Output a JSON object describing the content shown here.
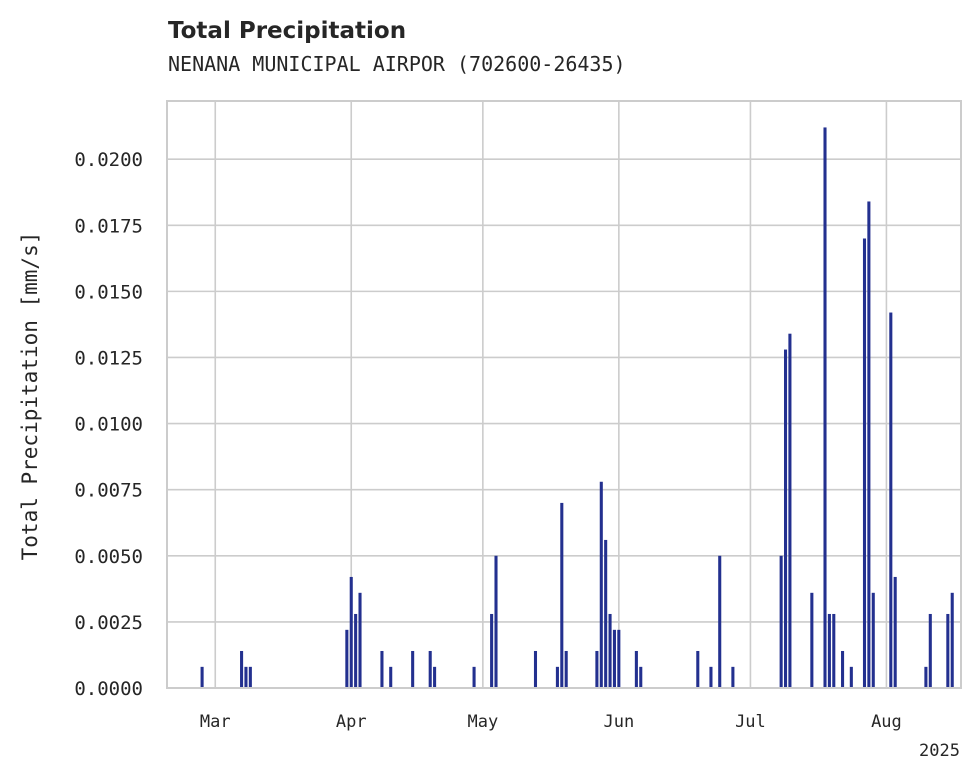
{
  "chart_data": {
    "type": "bar",
    "title": "Total Precipitation",
    "subtitle": "NENANA MUNICIPAL AIRPOR (702600-26435)",
    "xlabel": "",
    "ylabel": "Total Precipitation [mm/s]",
    "year_label": "2025",
    "ylim": [
      0,
      0.0222
    ],
    "xlim": [
      "2025-02-18",
      "2025-08-18"
    ],
    "yticks": [
      "0.0000",
      "0.0025",
      "0.0050",
      "0.0075",
      "0.0100",
      "0.0125",
      "0.0150",
      "0.0175",
      "0.0200"
    ],
    "xticks": [
      {
        "label": "Mar",
        "date": "2025-03-01"
      },
      {
        "label": "Apr",
        "date": "2025-04-01"
      },
      {
        "label": "May",
        "date": "2025-05-01"
      },
      {
        "label": "Jun",
        "date": "2025-06-01"
      },
      {
        "label": "Jul",
        "date": "2025-07-01"
      },
      {
        "label": "Aug",
        "date": "2025-08-01"
      }
    ],
    "grid": true,
    "bar_color": "#23308f",
    "points": [
      [
        "2025-02-26",
        0.0008
      ],
      [
        "2025-03-07",
        0.0014
      ],
      [
        "2025-03-08",
        0.0008
      ],
      [
        "2025-03-09",
        0.0008
      ],
      [
        "2025-03-31",
        0.0022
      ],
      [
        "2025-04-01",
        0.0042
      ],
      [
        "2025-04-02",
        0.0028
      ],
      [
        "2025-04-03",
        0.0036
      ],
      [
        "2025-04-08",
        0.0014
      ],
      [
        "2025-04-10",
        0.0008
      ],
      [
        "2025-04-15",
        0.0014
      ],
      [
        "2025-04-19",
        0.0014
      ],
      [
        "2025-04-20",
        0.0008
      ],
      [
        "2025-04-29",
        0.0008
      ],
      [
        "2025-05-03",
        0.0028
      ],
      [
        "2025-05-04",
        0.005
      ],
      [
        "2025-05-13",
        0.0014
      ],
      [
        "2025-05-18",
        0.0008
      ],
      [
        "2025-05-19",
        0.007
      ],
      [
        "2025-05-20",
        0.0014
      ],
      [
        "2025-05-27",
        0.0014
      ],
      [
        "2025-05-28",
        0.0078
      ],
      [
        "2025-05-29",
        0.0056
      ],
      [
        "2025-05-30",
        0.0028
      ],
      [
        "2025-05-31",
        0.0022
      ],
      [
        "2025-06-01",
        0.0022
      ],
      [
        "2025-06-05",
        0.0014
      ],
      [
        "2025-06-06",
        0.0008
      ],
      [
        "2025-06-19",
        0.0014
      ],
      [
        "2025-06-22",
        0.0008
      ],
      [
        "2025-06-24",
        0.005
      ],
      [
        "2025-06-27",
        0.0008
      ],
      [
        "2025-07-08",
        0.005
      ],
      [
        "2025-07-09",
        0.0128
      ],
      [
        "2025-07-10",
        0.0134
      ],
      [
        "2025-07-15",
        0.0036
      ],
      [
        "2025-07-18",
        0.0212
      ],
      [
        "2025-07-19",
        0.0028
      ],
      [
        "2025-07-20",
        0.0028
      ],
      [
        "2025-07-22",
        0.0014
      ],
      [
        "2025-07-24",
        0.0008
      ],
      [
        "2025-07-27",
        0.017
      ],
      [
        "2025-07-28",
        0.0184
      ],
      [
        "2025-07-29",
        0.0036
      ],
      [
        "2025-08-02",
        0.0142
      ],
      [
        "2025-08-03",
        0.0042
      ],
      [
        "2025-08-10",
        0.0008
      ],
      [
        "2025-08-11",
        0.0028
      ],
      [
        "2025-08-15",
        0.0028
      ],
      [
        "2025-08-16",
        0.0036
      ]
    ]
  }
}
